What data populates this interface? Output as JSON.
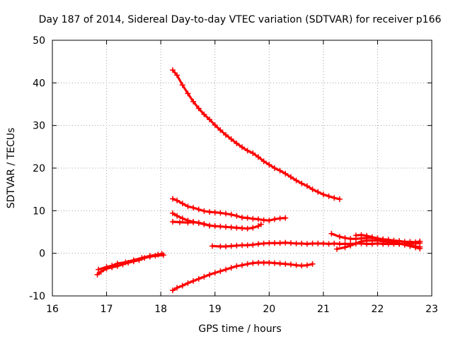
{
  "chart_data": {
    "type": "scatter",
    "title": "Day 187 of 2014, Sidereal Day-to-day VTEC variation (SDTVAR) for receiver p166",
    "xlabel": "GPS time / hours",
    "ylabel": "SDTVAR / TECUs",
    "xlim": [
      16,
      23
    ],
    "ylim": [
      -10,
      50
    ],
    "xticks": [
      16,
      17,
      18,
      19,
      20,
      21,
      22,
      23
    ],
    "yticks": [
      -10,
      0,
      10,
      20,
      30,
      40,
      50
    ],
    "grid": true,
    "color": "#ff0000",
    "series": [
      {
        "name": "s1",
        "points": [
          [
            16.83,
            -5.0
          ],
          [
            16.9,
            -4.3
          ],
          [
            17.0,
            -3.6
          ],
          [
            17.1,
            -3.3
          ],
          [
            17.2,
            -3.0
          ],
          [
            17.3,
            -2.6
          ],
          [
            17.4,
            -2.2
          ],
          [
            17.5,
            -1.9
          ],
          [
            17.6,
            -1.6
          ],
          [
            17.7,
            -1.1
          ],
          [
            17.8,
            -0.8
          ],
          [
            17.9,
            -0.6
          ],
          [
            18.05,
            -0.4
          ]
        ]
      },
      {
        "name": "s2",
        "points": [
          [
            16.85,
            -3.8
          ],
          [
            17.0,
            -3.2
          ],
          [
            17.1,
            -2.9
          ],
          [
            17.2,
            -2.4
          ],
          [
            17.35,
            -2.1
          ],
          [
            17.5,
            -1.6
          ],
          [
            17.65,
            -1.1
          ],
          [
            17.8,
            -0.6
          ],
          [
            17.95,
            -0.3
          ],
          [
            18.02,
            -0.1
          ]
        ]
      },
      {
        "name": "s3",
        "points": [
          [
            18.22,
            43.0
          ],
          [
            18.3,
            41.8
          ],
          [
            18.4,
            39.5
          ],
          [
            18.5,
            37.5
          ],
          [
            18.6,
            35.6
          ],
          [
            18.7,
            34.0
          ],
          [
            18.8,
            32.6
          ],
          [
            18.9,
            31.4
          ],
          [
            19.0,
            30.1
          ],
          [
            19.1,
            28.9
          ],
          [
            19.2,
            27.8
          ],
          [
            19.3,
            26.8
          ],
          [
            19.4,
            25.8
          ],
          [
            19.5,
            24.9
          ],
          [
            19.6,
            24.1
          ],
          [
            19.7,
            23.5
          ],
          [
            19.8,
            22.6
          ],
          [
            19.9,
            21.6
          ],
          [
            20.0,
            20.8
          ],
          [
            20.1,
            20.0
          ],
          [
            20.2,
            19.4
          ],
          [
            20.3,
            18.7
          ],
          [
            20.4,
            17.9
          ],
          [
            20.5,
            17.1
          ],
          [
            20.6,
            16.4
          ],
          [
            20.7,
            15.8
          ],
          [
            20.8,
            15.0
          ],
          [
            20.9,
            14.4
          ],
          [
            21.0,
            13.8
          ],
          [
            21.1,
            13.4
          ],
          [
            21.2,
            13.0
          ],
          [
            21.3,
            12.7
          ]
        ]
      },
      {
        "name": "s4",
        "points": [
          [
            18.22,
            12.8
          ],
          [
            18.3,
            12.4
          ],
          [
            18.4,
            11.7
          ],
          [
            18.5,
            11.0
          ],
          [
            18.6,
            10.7
          ],
          [
            18.7,
            10.3
          ],
          [
            18.8,
            9.9
          ],
          [
            18.9,
            9.7
          ],
          [
            19.0,
            9.6
          ],
          [
            19.1,
            9.5
          ],
          [
            19.2,
            9.3
          ],
          [
            19.3,
            9.1
          ],
          [
            19.4,
            8.8
          ],
          [
            19.5,
            8.4
          ],
          [
            19.6,
            8.3
          ],
          [
            19.7,
            8.1
          ],
          [
            19.8,
            8.0
          ],
          [
            19.9,
            7.8
          ],
          [
            20.0,
            7.7
          ],
          [
            20.1,
            8.0
          ],
          [
            20.2,
            8.2
          ],
          [
            20.3,
            8.3
          ]
        ]
      },
      {
        "name": "s5",
        "points": [
          [
            18.22,
            9.4
          ],
          [
            18.3,
            8.8
          ],
          [
            18.4,
            8.2
          ],
          [
            18.5,
            7.7
          ],
          [
            18.6,
            7.4
          ],
          [
            18.7,
            7.1
          ],
          [
            18.8,
            6.8
          ],
          [
            18.9,
            6.5
          ],
          [
            19.0,
            6.4
          ],
          [
            19.1,
            6.3
          ],
          [
            19.2,
            6.2
          ],
          [
            19.3,
            6.1
          ],
          [
            19.4,
            6.0
          ],
          [
            19.5,
            5.9
          ],
          [
            19.6,
            5.8
          ],
          [
            19.7,
            6.0
          ],
          [
            19.8,
            6.4
          ],
          [
            19.85,
            6.8
          ]
        ]
      },
      {
        "name": "s6",
        "points": [
          [
            18.22,
            7.4
          ],
          [
            18.35,
            7.3
          ],
          [
            18.5,
            7.2
          ],
          [
            18.6,
            7.3
          ],
          [
            18.7,
            7.2
          ],
          [
            18.8,
            6.9
          ],
          [
            18.9,
            6.5
          ]
        ]
      },
      {
        "name": "s7",
        "points": [
          [
            18.22,
            -8.7
          ],
          [
            18.3,
            -8.1
          ],
          [
            18.4,
            -7.6
          ],
          [
            18.5,
            -7.0
          ],
          [
            18.6,
            -6.5
          ],
          [
            18.7,
            -6.0
          ],
          [
            18.8,
            -5.5
          ],
          [
            18.9,
            -5.0
          ],
          [
            19.0,
            -4.6
          ],
          [
            19.1,
            -4.2
          ],
          [
            19.2,
            -3.8
          ],
          [
            19.3,
            -3.4
          ],
          [
            19.4,
            -3.0
          ],
          [
            19.5,
            -2.8
          ],
          [
            19.6,
            -2.5
          ],
          [
            19.7,
            -2.3
          ],
          [
            19.8,
            -2.2
          ],
          [
            19.9,
            -2.2
          ],
          [
            20.0,
            -2.2
          ],
          [
            20.1,
            -2.3
          ],
          [
            20.2,
            -2.4
          ],
          [
            20.3,
            -2.5
          ],
          [
            20.4,
            -2.6
          ],
          [
            20.5,
            -2.8
          ],
          [
            20.6,
            -2.9
          ],
          [
            20.7,
            -2.8
          ],
          [
            20.8,
            -2.5
          ]
        ]
      },
      {
        "name": "s8",
        "points": [
          [
            18.95,
            1.7
          ],
          [
            19.1,
            1.6
          ],
          [
            19.2,
            1.6
          ],
          [
            19.3,
            1.7
          ],
          [
            19.4,
            1.8
          ],
          [
            19.5,
            1.9
          ],
          [
            19.6,
            1.9
          ],
          [
            19.7,
            2.0
          ],
          [
            19.8,
            2.2
          ],
          [
            19.9,
            2.3
          ],
          [
            20.0,
            2.4
          ],
          [
            20.1,
            2.4
          ],
          [
            20.2,
            2.4
          ],
          [
            20.3,
            2.5
          ],
          [
            20.4,
            2.4
          ],
          [
            20.5,
            2.3
          ],
          [
            20.6,
            2.3
          ],
          [
            20.7,
            2.2
          ],
          [
            20.8,
            2.3
          ],
          [
            20.9,
            2.3
          ],
          [
            21.0,
            2.3
          ],
          [
            21.1,
            2.2
          ],
          [
            21.2,
            2.3
          ],
          [
            21.3,
            2.2
          ],
          [
            21.4,
            2.2
          ],
          [
            21.5,
            2.2
          ],
          [
            21.6,
            2.3
          ],
          [
            21.7,
            2.3
          ],
          [
            21.8,
            2.2
          ],
          [
            21.9,
            2.2
          ],
          [
            22.0,
            2.3
          ],
          [
            22.1,
            2.2
          ],
          [
            22.2,
            2.2
          ],
          [
            22.3,
            2.2
          ],
          [
            22.4,
            2.2
          ],
          [
            22.5,
            2.2
          ],
          [
            22.6,
            2.2
          ],
          [
            22.7,
            2.3
          ],
          [
            22.78,
            2.4
          ]
        ]
      },
      {
        "name": "s9",
        "points": [
          [
            21.15,
            4.6
          ],
          [
            21.3,
            3.9
          ],
          [
            21.4,
            3.6
          ],
          [
            21.5,
            3.4
          ],
          [
            21.6,
            3.4
          ],
          [
            21.7,
            3.5
          ],
          [
            21.8,
            3.6
          ],
          [
            21.9,
            3.6
          ],
          [
            22.0,
            3.5
          ],
          [
            22.1,
            3.3
          ],
          [
            22.2,
            3.2
          ],
          [
            22.3,
            3.0
          ],
          [
            22.4,
            2.9
          ],
          [
            22.5,
            2.7
          ],
          [
            22.6,
            2.7
          ],
          [
            22.7,
            2.6
          ],
          [
            22.78,
            2.8
          ]
        ]
      },
      {
        "name": "s10",
        "points": [
          [
            21.25,
            1.0
          ],
          [
            21.4,
            1.4
          ],
          [
            21.5,
            1.8
          ],
          [
            21.6,
            2.3
          ],
          [
            21.7,
            2.8
          ],
          [
            21.8,
            3.0
          ],
          [
            21.9,
            3.0
          ],
          [
            22.0,
            3.0
          ],
          [
            22.1,
            2.8
          ],
          [
            22.2,
            2.7
          ],
          [
            22.3,
            2.5
          ],
          [
            22.4,
            2.3
          ],
          [
            22.5,
            2.0
          ],
          [
            22.6,
            1.7
          ],
          [
            22.7,
            1.4
          ],
          [
            22.78,
            1.1
          ]
        ]
      },
      {
        "name": "s11",
        "points": [
          [
            21.6,
            4.2
          ],
          [
            21.7,
            4.3
          ],
          [
            21.8,
            4.1
          ],
          [
            21.9,
            3.8
          ],
          [
            22.0,
            3.5
          ],
          [
            22.1,
            3.2
          ],
          [
            22.2,
            2.9
          ],
          [
            22.3,
            2.6
          ],
          [
            22.4,
            2.3
          ],
          [
            22.5,
            2.1
          ],
          [
            22.6,
            1.8
          ],
          [
            22.7,
            1.6
          ],
          [
            22.78,
            1.5
          ]
        ]
      }
    ]
  }
}
